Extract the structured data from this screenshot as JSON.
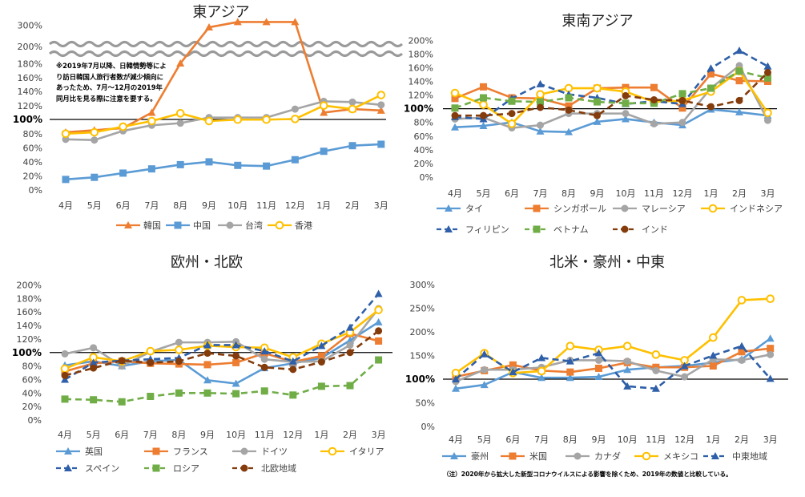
{
  "chart_data": [
    {
      "type": "line",
      "title": "東アジア",
      "categories": [
        "4月",
        "5月",
        "6月",
        "7月",
        "8月",
        "9月",
        "10月",
        "11月",
        "12月",
        "1月",
        "2月",
        "3月"
      ],
      "y_ticks": [
        "0%",
        "20%",
        "40%",
        "60%",
        "80%",
        "100%",
        "120%",
        "140%",
        "160%",
        "180%",
        "200%",
        "300%"
      ],
      "y_axis": "broken between 200% and 300%",
      "note": "※2019年7月以降、日韓情勢等により訪日韓国人旅行者数が減少傾向にあったため、7月～12月の2019年同月比を見る際に注意を要する。",
      "legend_position": "bottom",
      "series": [
        {
          "name": "韓国",
          "color": "#ED7D31",
          "marker": "triangle",
          "dash": "solid",
          "values": [
            82,
            85,
            88,
            110,
            180,
            290,
            315,
            315,
            315,
            110,
            115,
            113
          ]
        },
        {
          "name": "中国",
          "color": "#5B9BD5",
          "marker": "square",
          "dash": "solid",
          "values": [
            15,
            18,
            24,
            30,
            36,
            40,
            35,
            34,
            43,
            55,
            63,
            65
          ]
        },
        {
          "name": "台湾",
          "color": "#A5A5A5",
          "marker": "circle",
          "dash": "solid",
          "values": [
            72,
            71,
            84,
            92,
            95,
            103,
            103,
            103,
            115,
            126,
            125,
            121
          ]
        },
        {
          "name": "香港",
          "color": "#FFC000",
          "marker": "ring",
          "dash": "solid",
          "values": [
            80,
            82,
            90,
            98,
            109,
            98,
            100,
            100,
            101,
            120,
            115,
            135
          ]
        }
      ]
    },
    {
      "type": "line",
      "title": "東南アジア",
      "categories": [
        "4月",
        "5月",
        "6月",
        "7月",
        "8月",
        "9月",
        "10月",
        "11月",
        "12月",
        "1月",
        "2月",
        "3月"
      ],
      "y_ticks": [
        "0%",
        "20%",
        "40%",
        "60%",
        "80%",
        "100%",
        "120%",
        "140%",
        "160%",
        "180%",
        "200%"
      ],
      "legend_position": "bottom",
      "series": [
        {
          "name": "タイ",
          "color": "#5B9BD5",
          "marker": "triangle",
          "dash": "solid",
          "values": [
            73,
            75,
            80,
            67,
            66,
            81,
            85,
            80,
            76,
            99,
            95,
            90
          ]
        },
        {
          "name": "シンガポール",
          "color": "#ED7D31",
          "marker": "square",
          "dash": "solid",
          "values": [
            115,
            132,
            116,
            115,
            104,
            130,
            131,
            131,
            101,
            151,
            141,
            140
          ]
        },
        {
          "name": "マレーシア",
          "color": "#A5A5A5",
          "marker": "circle",
          "dash": "solid",
          "values": [
            85,
            87,
            72,
            76,
            93,
            93,
            93,
            78,
            80,
            130,
            163,
            83
          ]
        },
        {
          "name": "インドネシア",
          "color": "#FFC000",
          "marker": "ring",
          "dash": "solid",
          "values": [
            123,
            106,
            78,
            121,
            130,
            130,
            125,
            110,
            112,
            125,
            155,
            94
          ]
        },
        {
          "name": "フィリピン",
          "color": "#2E5FA8",
          "marker": "triangle",
          "dash": "dash",
          "values": [
            88,
            85,
            115,
            136,
            121,
            116,
            107,
            111,
            107,
            159,
            185,
            162
          ]
        },
        {
          "name": "ベトナム",
          "color": "#70AD47",
          "marker": "square",
          "dash": "dash",
          "values": [
            101,
            116,
            111,
            110,
            116,
            110,
            108,
            108,
            122,
            130,
            155,
            145
          ]
        },
        {
          "name": "インド",
          "color": "#843C0C",
          "marker": "circle",
          "dash": "dash",
          "values": [
            90,
            90,
            93,
            102,
            98,
            90,
            119,
            113,
            112,
            103,
            112,
            153
          ]
        }
      ]
    },
    {
      "type": "line",
      "title": "欧州・北欧",
      "categories": [
        "4月",
        "5月",
        "6月",
        "7月",
        "8月",
        "9月",
        "10月",
        "11月",
        "12月",
        "1月",
        "2月",
        "3月"
      ],
      "y_ticks": [
        "0%",
        "20%",
        "40%",
        "60%",
        "80%",
        "100%",
        "120%",
        "140%",
        "160%",
        "180%",
        "200%"
      ],
      "legend_position": "bottom",
      "series": [
        {
          "name": "英国",
          "color": "#5B9BD5",
          "marker": "triangle",
          "dash": "solid",
          "values": [
            81,
            87,
            80,
            87,
            89,
            59,
            54,
            77,
            84,
            92,
            118,
            145
          ]
        },
        {
          "name": "フランス",
          "color": "#ED7D31",
          "marker": "square",
          "dash": "solid",
          "values": [
            72,
            84,
            87,
            84,
            83,
            82,
            85,
            99,
            86,
            95,
            128,
            117
          ]
        },
        {
          "name": "ドイツ",
          "color": "#A5A5A5",
          "marker": "circle",
          "dash": "solid",
          "values": [
            98,
            107,
            80,
            101,
            115,
            115,
            116,
            90,
            86,
            87,
            111,
            165
          ]
        },
        {
          "name": "イタリア",
          "color": "#FFC000",
          "marker": "ring",
          "dash": "solid",
          "values": [
            76,
            93,
            87,
            102,
            104,
            110,
            108,
            107,
            93,
            113,
            130,
            163
          ]
        },
        {
          "name": "スペイン",
          "color": "#2E5FA8",
          "marker": "triangle",
          "dash": "dash",
          "values": [
            60,
            85,
            88,
            90,
            92,
            111,
            111,
            102,
            87,
            110,
            137,
            187
          ]
        },
        {
          "name": "ロシア",
          "color": "#70AD47",
          "marker": "square",
          "dash": "dash",
          "values": [
            31,
            30,
            27,
            35,
            40,
            40,
            39,
            43,
            37,
            50,
            51,
            89
          ]
        },
        {
          "name": "北欧地域",
          "color": "#843C0C",
          "marker": "circle",
          "dash": "dash",
          "values": [
            66,
            77,
            88,
            85,
            87,
            99,
            95,
            78,
            75,
            86,
            100,
            132
          ]
        }
      ]
    },
    {
      "type": "line",
      "title": "北米・豪州・中東",
      "categories": [
        "4月",
        "5月",
        "6月",
        "7月",
        "8月",
        "9月",
        "10月",
        "11月",
        "12月",
        "1月",
        "2月",
        "3月"
      ],
      "y_ticks": [
        "0%",
        "50%",
        "100%",
        "150%",
        "200%",
        "250%",
        "300%"
      ],
      "footnote": "（注）2020年から拡大した新型コロナウイルスによる影響を除くため、2019年の数値と比較している。",
      "legend_position": "bottom",
      "series": [
        {
          "name": "豪州",
          "color": "#5B9BD5",
          "marker": "triangle",
          "dash": "solid",
          "values": [
            80,
            88,
            115,
            103,
            103,
            105,
            120,
            125,
            128,
            135,
            142,
            186
          ]
        },
        {
          "name": "米国",
          "color": "#ED7D31",
          "marker": "square",
          "dash": "solid",
          "values": [
            105,
            118,
            130,
            118,
            115,
            123,
            135,
            125,
            125,
            128,
            158,
            165
          ]
        },
        {
          "name": "カナダ",
          "color": "#A5A5A5",
          "marker": "circle",
          "dash": "solid",
          "values": [
            95,
            120,
            120,
            125,
            140,
            140,
            138,
            118,
            105,
            142,
            140,
            152
          ]
        },
        {
          "name": "メキシコ",
          "color": "#FFC000",
          "marker": "ring",
          "dash": "solid",
          "values": [
            113,
            155,
            113,
            117,
            170,
            162,
            170,
            152,
            140,
            188,
            267,
            270
          ]
        },
        {
          "name": "中東地域",
          "color": "#2E5FA8",
          "marker": "triangle",
          "dash": "dash",
          "values": [
            100,
            153,
            115,
            145,
            138,
            155,
            85,
            80,
            128,
            150,
            170,
            101
          ]
        }
      ]
    }
  ]
}
